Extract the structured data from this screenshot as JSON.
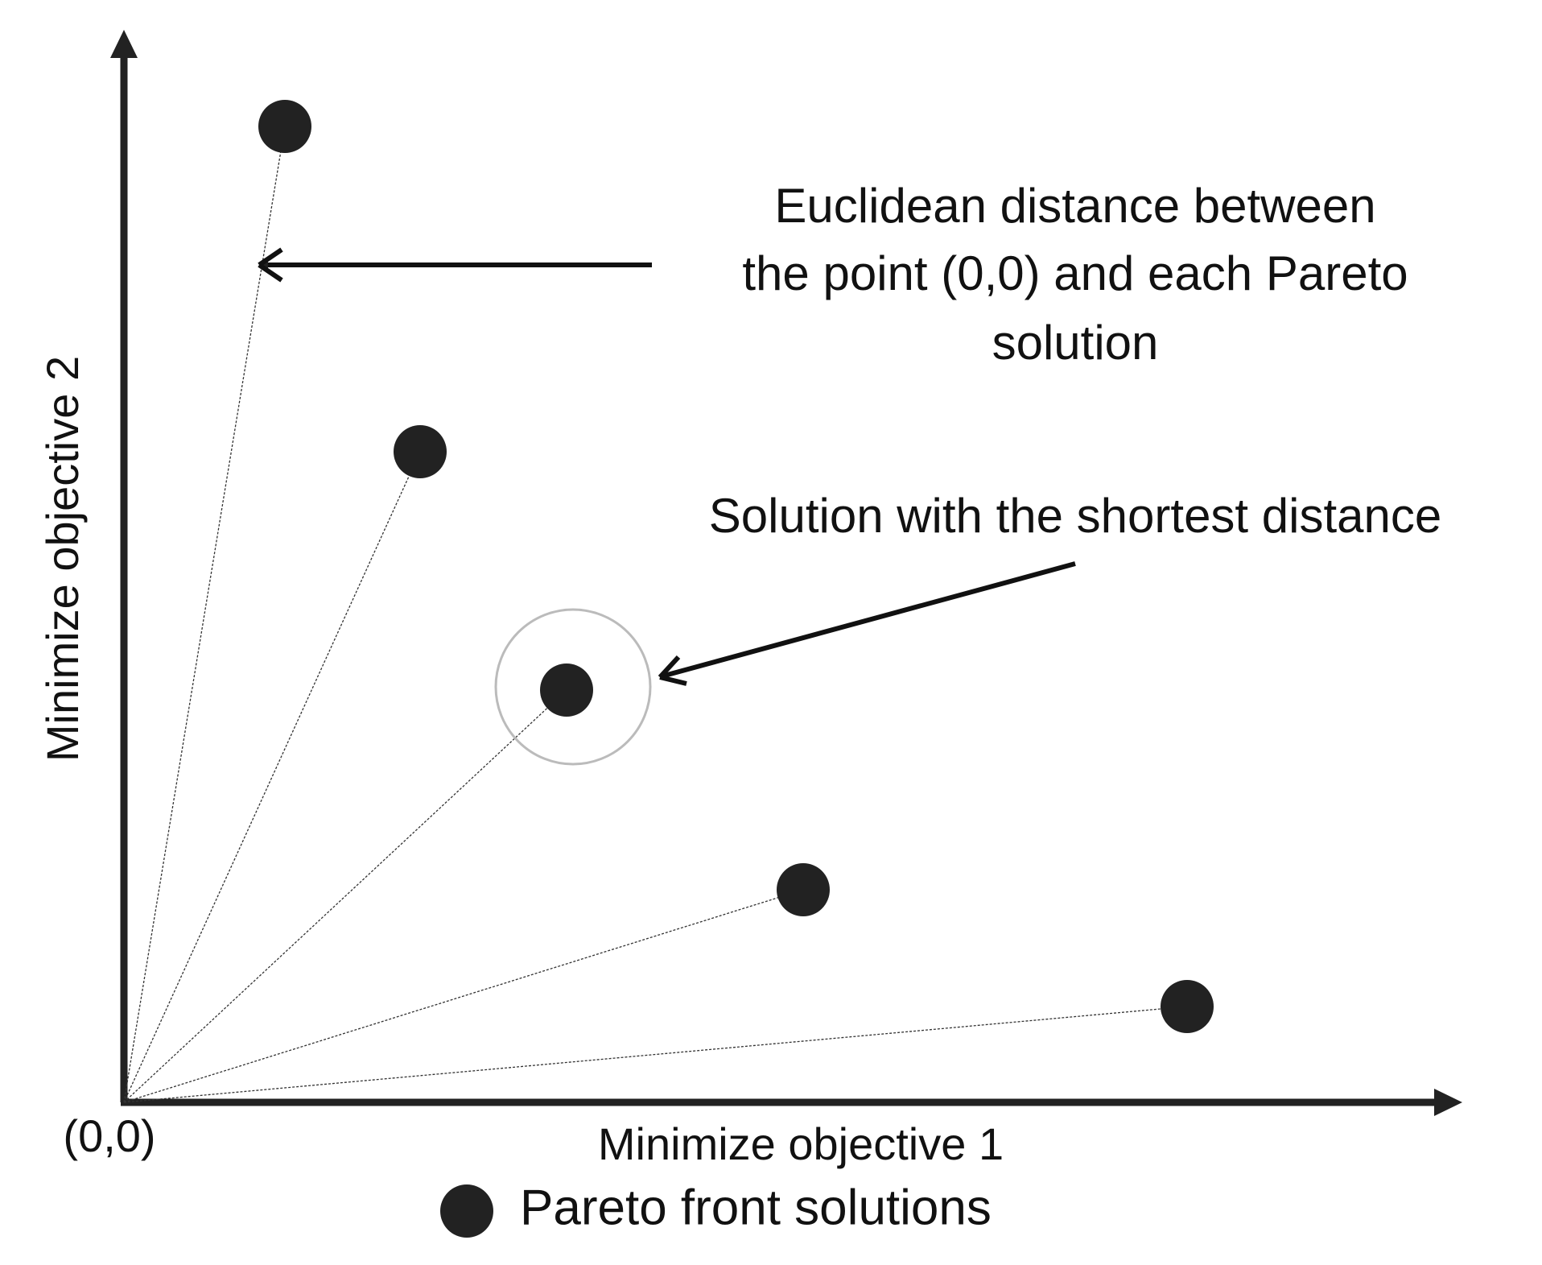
{
  "axes": {
    "y_label": "Minimize objective 2",
    "x_label": "Minimize objective 1",
    "origin_label": "(0,0)"
  },
  "annotations": {
    "distance": [
      "Euclidean distance between",
      "the point (0,0) and each Pareto",
      "solution"
    ],
    "shortest": "Solution with the shortest distance"
  },
  "legend": {
    "label": "Pareto front solutions"
  }
}
